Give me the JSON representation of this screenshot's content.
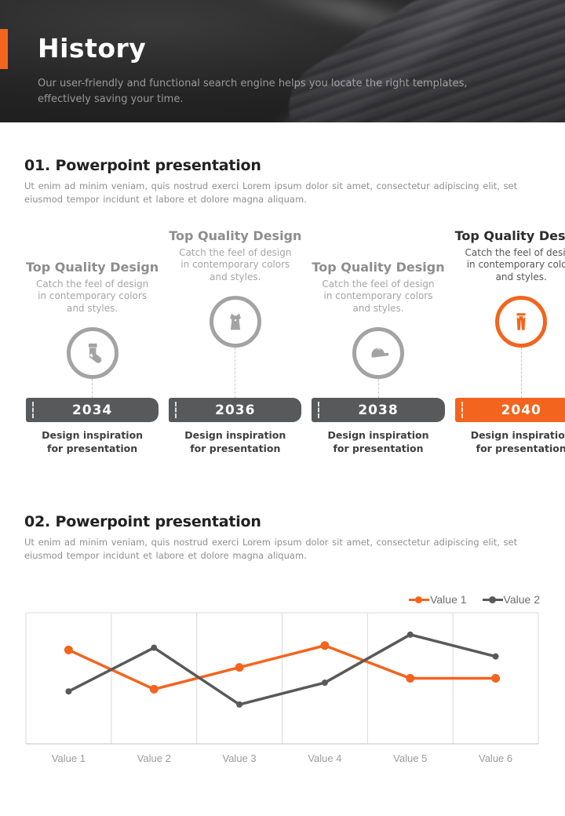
{
  "colors": {
    "accent": "#F3641E",
    "bar_gray": "#58595B",
    "grid": "#d9d9d9",
    "axis": "#c3c3c3",
    "axis_label": "#9b9b9b"
  },
  "header": {
    "title": "History",
    "subtitle": "Our user-friendly and functional search engine helps you locate the right templates, effectively saving your time."
  },
  "section1": {
    "title": "01. Powerpoint presentation",
    "body": "Ut enim ad minim veniam, quis nostrud exerci  Lorem ipsum dolor sit amet, consectetur adipiscing elit, set eiusmod tempor incidunt et labore et dolore magna aliquam."
  },
  "section2": {
    "title": "02. Powerpoint presentation",
    "body": "Ut enim ad minim veniam, quis nostrud exerci  Lorem ipsum dolor sit amet, consectetur adipiscing elit, set eiusmod tempor incidunt et labore et dolore magna aliquam."
  },
  "timeline": {
    "items": [
      {
        "heading": "Top Quality Design",
        "description": "Catch the feel of design in contemporary colors and styles.",
        "icon": "sock-icon",
        "year": "2034",
        "caption": "Design inspiration for presentation",
        "highlight": false
      },
      {
        "heading": "Top Quality Design",
        "description": "Catch the feel of design in contemporary colors and styles.",
        "icon": "dress-icon",
        "year": "2036",
        "caption": "Design inspiration for presentation",
        "highlight": false
      },
      {
        "heading": "Top Quality Design",
        "description": "Catch the feel of design in contemporary colors and styles.",
        "icon": "cap-icon",
        "year": "2038",
        "caption": "Design inspiration for presentation",
        "highlight": false
      },
      {
        "heading": "Top Quality Design",
        "description": "Catch the feel of design in contemporary colors and styles.",
        "icon": "pants-icon",
        "year": "2040",
        "caption": "Design inspiration for presentation",
        "highlight": true
      }
    ]
  },
  "chart_data": {
    "type": "line",
    "categories": [
      "Value 1",
      "Value 2",
      "Value 3",
      "Value 4",
      "Value 5",
      "Value 6"
    ],
    "series": [
      {
        "name": "Value 1",
        "color": "#F3641E",
        "values": [
          4.3,
          2.5,
          3.5,
          4.5,
          3.0,
          3.0
        ]
      },
      {
        "name": "Value 2",
        "color": "#595959",
        "values": [
          2.4,
          4.4,
          1.8,
          2.8,
          5.0,
          4.0
        ]
      }
    ],
    "title": "",
    "xlabel": "",
    "ylabel": "",
    "ylim": [
      0,
      6
    ],
    "grid": "vertical-only",
    "legend_position": "top-right"
  }
}
